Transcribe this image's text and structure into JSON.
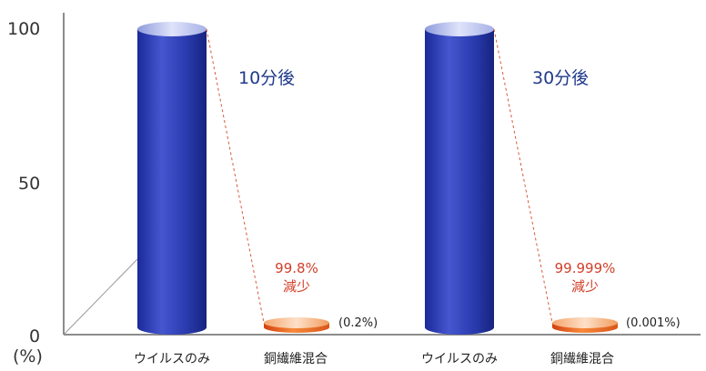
{
  "chart_data": {
    "type": "bar",
    "yaxis": {
      "ticks": [
        "0",
        "50",
        "100"
      ],
      "unit_label": "(%)",
      "ylim": [
        0,
        100
      ]
    },
    "groups": [
      {
        "title": "10分後",
        "bars": [
          {
            "category": "ウイルスのみ",
            "value": 100
          },
          {
            "category": "銅繊維混合",
            "value": 0.2,
            "value_label": "(0.2%)"
          }
        ],
        "reduction_value": "99.8%",
        "reduction_label": "減少"
      },
      {
        "title": "30分後",
        "bars": [
          {
            "category": "ウイルスのみ",
            "value": 100
          },
          {
            "category": "銅繊維混合",
            "value": 0.001,
            "value_label": "(0.001%)"
          }
        ],
        "reduction_value": "99.999%",
        "reduction_label": "減少"
      }
    ],
    "colors": {
      "control": "#2c3db0",
      "copper": "#f07a28"
    }
  }
}
